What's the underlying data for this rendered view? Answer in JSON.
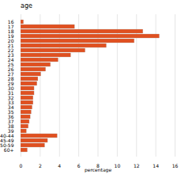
{
  "chart_data": {
    "type": "bar",
    "orientation": "horizontal",
    "title": "age",
    "xlabel": "percentage",
    "categories": [
      "16",
      "17",
      "18",
      "19",
      "20",
      "21",
      "22",
      "23",
      "24",
      "25",
      "26",
      "27",
      "28",
      "29",
      "30",
      "31",
      "32",
      "33",
      "34",
      "35",
      "36",
      "37",
      "38",
      "39",
      "40-44",
      "45-49",
      "50-59",
      "60+"
    ],
    "values": [
      0.3,
      5.6,
      12.7,
      14.4,
      11.8,
      8.9,
      6.7,
      5.2,
      3.9,
      3.1,
      2.6,
      2.1,
      1.8,
      1.7,
      1.4,
      1.4,
      1.3,
      1.3,
      1.2,
      1.1,
      1.0,
      0.9,
      0.8,
      0.6,
      3.8,
      2.8,
      2.5,
      0.7
    ],
    "color": "#e05020",
    "xlim": [
      0,
      16
    ],
    "xticks": [
      0,
      2,
      4,
      6,
      8,
      10,
      12,
      14,
      16
    ],
    "grid": true
  }
}
